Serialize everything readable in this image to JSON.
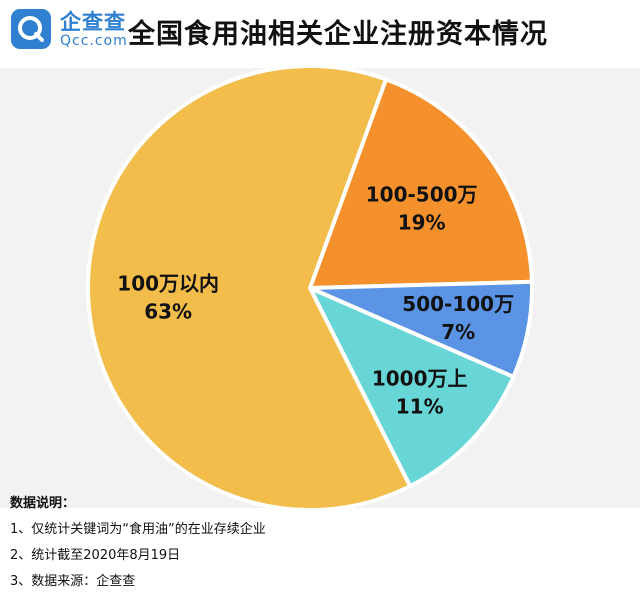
{
  "brand": {
    "name_cn": "企查查",
    "name_en": "Qcc.com",
    "logo_color": "#2f80d1"
  },
  "title": "全国食用油相关企业注册资本情况",
  "chart_data": {
    "type": "pie",
    "title": "全国食用油相关企业注册资本情况",
    "start_angle_deg": 20,
    "direction": "clockwise",
    "slices": [
      {
        "label": "100-500万",
        "value": 19,
        "value_label": "19%",
        "color": "#f5912d"
      },
      {
        "label": "500-100万",
        "value": 7,
        "value_label": "7%",
        "color": "#5c94e5"
      },
      {
        "label": "1000万上",
        "value": 11,
        "value_label": "11%",
        "color": "#68d6d6"
      },
      {
        "label": "100万以内",
        "value": 63,
        "value_label": "63%",
        "color": "#f2bd4a"
      }
    ]
  },
  "notes": {
    "title": "数据说明：",
    "items": [
      "1、仅统计关键词为“食用油”的在业存续企业",
      "2、统计截至2020年8月19日",
      "3、数据来源：企查查"
    ]
  }
}
